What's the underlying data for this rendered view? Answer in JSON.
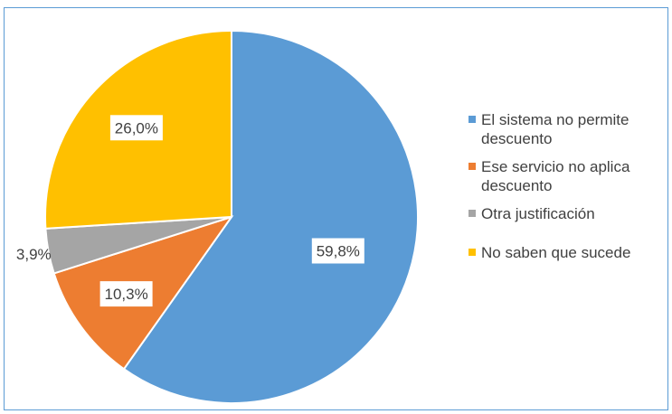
{
  "chart_data": {
    "type": "pie",
    "title": "",
    "slices": [
      {
        "label": "El sistema no permite descuento",
        "value": 59.8,
        "value_label": "59,8%",
        "color": "#5b9bd5"
      },
      {
        "label": "Ese servicio no aplica descuento",
        "value": 10.3,
        "value_label": "10,3%",
        "color": "#ed7d31"
      },
      {
        "label": "Otra justificación",
        "value": 3.9,
        "value_label": "3,9%",
        "color": "#a5a5a5"
      },
      {
        "label": "No saben que sucede",
        "value": 26.0,
        "value_label": "26,0%",
        "color": "#ffc000"
      }
    ],
    "legend_position": "right",
    "start_angle_deg": 0,
    "direction": "clockwise"
  }
}
